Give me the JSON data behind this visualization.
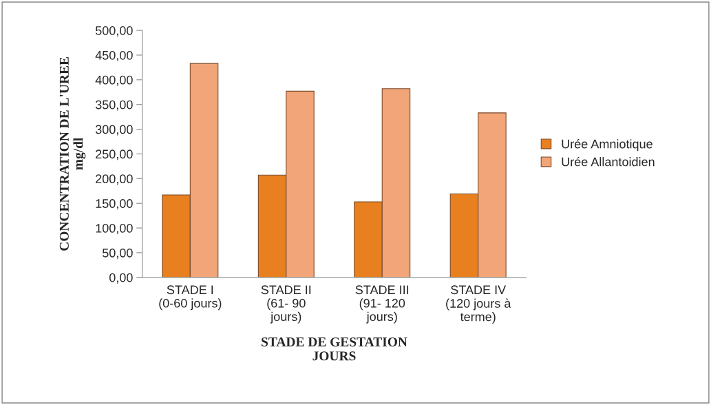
{
  "chart_data": {
    "type": "bar",
    "xlabel": "STADE DE GESTATION\nJOURS",
    "ylabel": "CONCENTRATION DE L'UREE\nmg/dl",
    "categories": [
      "STADE I\n(0-60 jours)",
      "STADE II\n(61- 90\njours)",
      "STADE III\n(91- 120\njours)",
      "STADE IV\n(120 jours à\nterme)"
    ],
    "series": [
      {
        "name": "Urée Amniotique",
        "color": "#e8801f",
        "values": [
          167,
          207,
          153,
          169
        ]
      },
      {
        "name": "Urée Allantoidien",
        "color": "#f2a578",
        "values": [
          433,
          377,
          382,
          333
        ]
      }
    ],
    "ylim": [
      0,
      500
    ],
    "yticks": [
      {
        "value": 0,
        "label": "0,00"
      },
      {
        "value": 50,
        "label": "50,00"
      },
      {
        "value": 100,
        "label": "100,00"
      },
      {
        "value": 150,
        "label": "150,00"
      },
      {
        "value": 200,
        "label": "200,00"
      },
      {
        "value": 250,
        "label": "250,00"
      },
      {
        "value": 300,
        "label": "300,00"
      },
      {
        "value": 350,
        "label": "350,00"
      },
      {
        "value": 400,
        "label": "400,00"
      },
      {
        "value": 450,
        "label": "450,00"
      },
      {
        "value": 500,
        "label": "500,00"
      }
    ],
    "grid": false,
    "legend": "right"
  }
}
